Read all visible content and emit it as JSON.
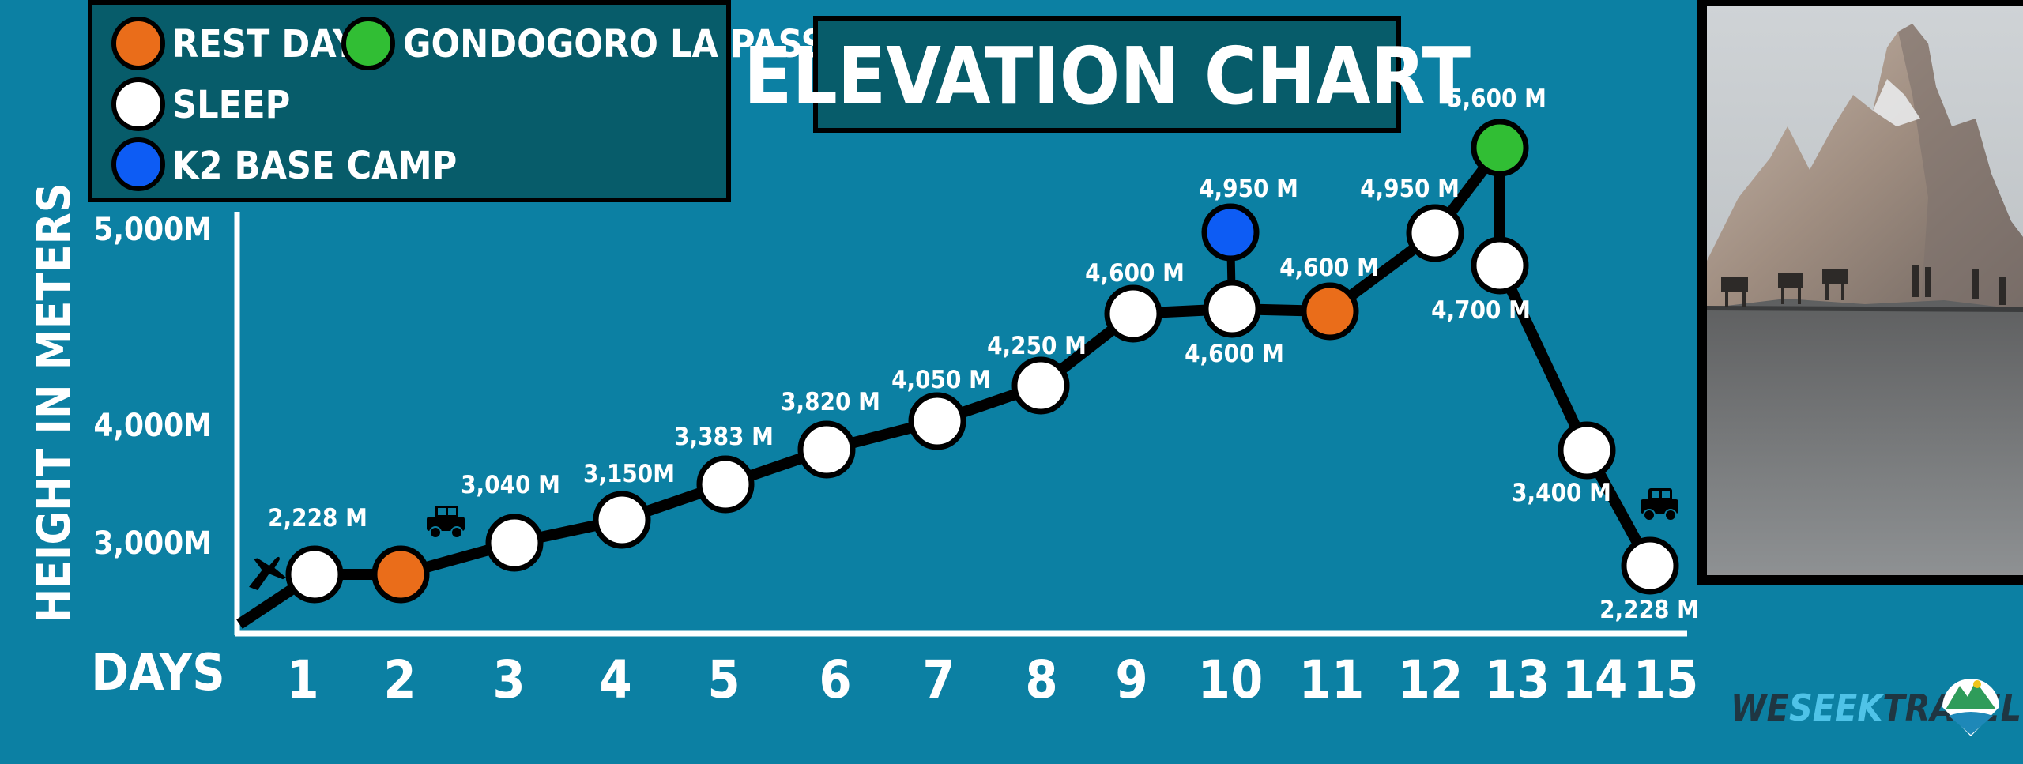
{
  "title": "ELEVATION CHART",
  "legend": {
    "rest_day": "REST DAY",
    "sleep": "SLEEP",
    "k2": "K2 BASE CAMP",
    "gondogoro": "GONDOGORO LA PASS"
  },
  "brand": {
    "we": "WE",
    "seek": "SEEK",
    "travel": "TRAVEL"
  },
  "colors": {
    "background": "#0c80a3",
    "panel": "#075c6a",
    "sleep": "#ffffff",
    "rest_day": "#ea6d1a",
    "k2": "#0d5cf4",
    "gondogoro": "#31be34",
    "line": "#000000"
  },
  "chart_data": {
    "type": "line",
    "title": "ELEVATION CHART",
    "xlabel": "DAYS",
    "ylabel": "HEIGHT IN METERS",
    "x_ticks": [
      "1",
      "2",
      "3",
      "4",
      "5",
      "6",
      "7",
      "8",
      "9",
      "10",
      "11",
      "12",
      "13",
      "14",
      "15"
    ],
    "y_ticks": [
      {
        "label": "5,000M",
        "value": 5000
      },
      {
        "label": "4,000M",
        "value": 4000
      },
      {
        "label": "3,000M",
        "value": 3000
      }
    ],
    "legend_position": "top-left",
    "grid": false,
    "points": [
      {
        "x": 0.6,
        "y": 2228,
        "label": "",
        "type": "start"
      },
      {
        "x": 1,
        "y": 2228,
        "label": "2,228 M",
        "type": "sleep"
      },
      {
        "x": 2,
        "y": 2228,
        "label": "",
        "type": "rest"
      },
      {
        "x": 3,
        "y": 3040,
        "label": "3,040 M",
        "type": "sleep"
      },
      {
        "x": 4,
        "y": 3150,
        "label": "3,150M",
        "type": "sleep"
      },
      {
        "x": 5,
        "y": 3383,
        "label": "3,383 M",
        "type": "sleep"
      },
      {
        "x": 6,
        "y": 3820,
        "label": "3,820 M",
        "type": "sleep"
      },
      {
        "x": 7,
        "y": 4050,
        "label": "4,050 M",
        "type": "sleep"
      },
      {
        "x": 8,
        "y": 4250,
        "label": "4,250 M",
        "type": "sleep"
      },
      {
        "x": 9,
        "y": 4600,
        "label": "4,600 M",
        "type": "sleep"
      },
      {
        "x": 10,
        "y": 4600,
        "label": "4,600 M",
        "type": "sleep"
      },
      {
        "x": 11,
        "y": 4600,
        "label": "4,600 M",
        "type": "rest"
      },
      {
        "x": 12,
        "y": 4950,
        "label": "4,950 M",
        "type": "sleep"
      },
      {
        "x": 12.7,
        "y": 5600,
        "label": "5,600 M",
        "type": "pass"
      },
      {
        "x": 13,
        "y": 4700,
        "label": "4,700 M",
        "type": "sleep"
      },
      {
        "x": 14,
        "y": 3400,
        "label": "3,400 M",
        "type": "sleep"
      },
      {
        "x": 15,
        "y": 2228,
        "label": "2,228 M",
        "type": "sleep"
      }
    ],
    "branch": {
      "from_x": 10,
      "from_y": 4600,
      "x": 10,
      "y": 4950,
      "label": "4,950 M",
      "type": "k2"
    },
    "icons": [
      {
        "name": "airplane-icon",
        "day": 1
      },
      {
        "name": "jeep-icon",
        "day": 2.5
      },
      {
        "name": "jeep-icon",
        "day": 15
      }
    ]
  }
}
